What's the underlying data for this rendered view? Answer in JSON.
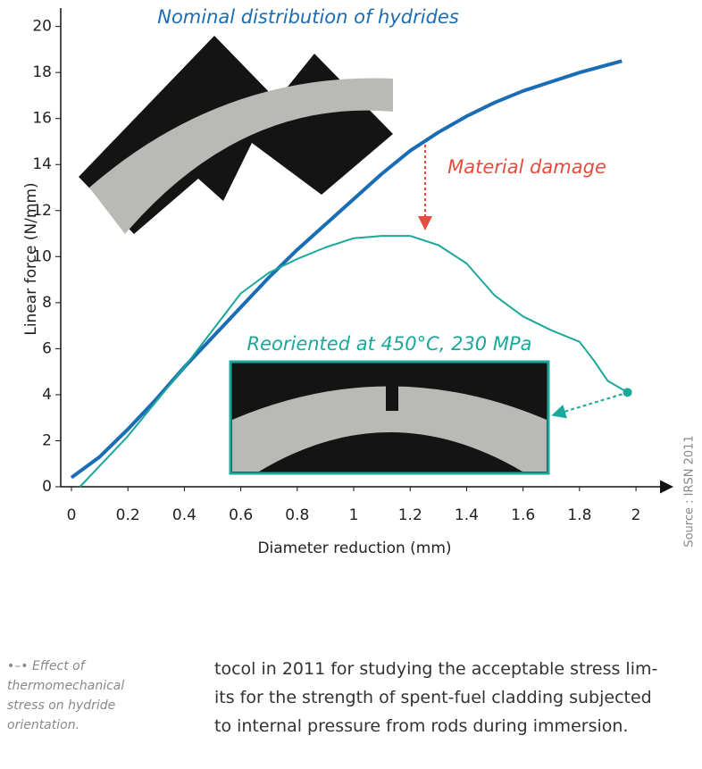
{
  "chart_data": {
    "type": "line",
    "x_label": "Diameter reduction (mm)",
    "y_label": "Linear force (N/mm)",
    "xlim": [
      0,
      2.12
    ],
    "ylim": [
      0,
      20.8
    ],
    "xticks": [
      0,
      0.2,
      0.4,
      0.6,
      0.8,
      1,
      1.2,
      1.4,
      1.6,
      1.8,
      2
    ],
    "yticks": [
      0,
      2,
      4,
      6,
      8,
      10,
      12,
      14,
      16,
      18,
      20
    ],
    "series": [
      {
        "name": "Nominal distribution of hydrides",
        "color": "#1a6db5",
        "x": [
          0,
          0.1,
          0.2,
          0.3,
          0.4,
          0.5,
          0.6,
          0.7,
          0.8,
          0.9,
          1.0,
          1.1,
          1.2,
          1.3,
          1.4,
          1.5,
          1.6,
          1.7,
          1.8,
          1.95
        ],
        "values": [
          0.4,
          1.3,
          2.5,
          3.8,
          5.2,
          6.5,
          7.8,
          9.1,
          10.3,
          11.4,
          12.5,
          13.6,
          14.6,
          15.4,
          16.1,
          16.7,
          17.2,
          17.6,
          18.0,
          18.5
        ]
      },
      {
        "name": "Reoriented at 450°C, 230 MPa",
        "color": "#1aa89a",
        "x": [
          0.03,
          0.2,
          0.4,
          0.6,
          0.7,
          0.8,
          0.9,
          1.0,
          1.1,
          1.2,
          1.3,
          1.4,
          1.5,
          1.6,
          1.7,
          1.8,
          1.85,
          1.9,
          1.97
        ],
        "values": [
          0,
          2.2,
          5.2,
          8.4,
          9.3,
          9.9,
          10.4,
          10.8,
          10.9,
          10.9,
          10.5,
          9.7,
          8.3,
          7.4,
          6.8,
          6.3,
          5.5,
          4.6,
          4.1
        ]
      }
    ],
    "annotations": [
      "Material damage"
    ]
  },
  "source": "Source : IRSN 2011",
  "caption": "Effect of thermomechanical stress on hydride orientation.",
  "body_lines": [
    "tocol in 2011 for studying the acceptable stress lim-",
    "its for the strength of spent-fuel cladding subjected",
    "to internal pressure from rods during immersion."
  ]
}
